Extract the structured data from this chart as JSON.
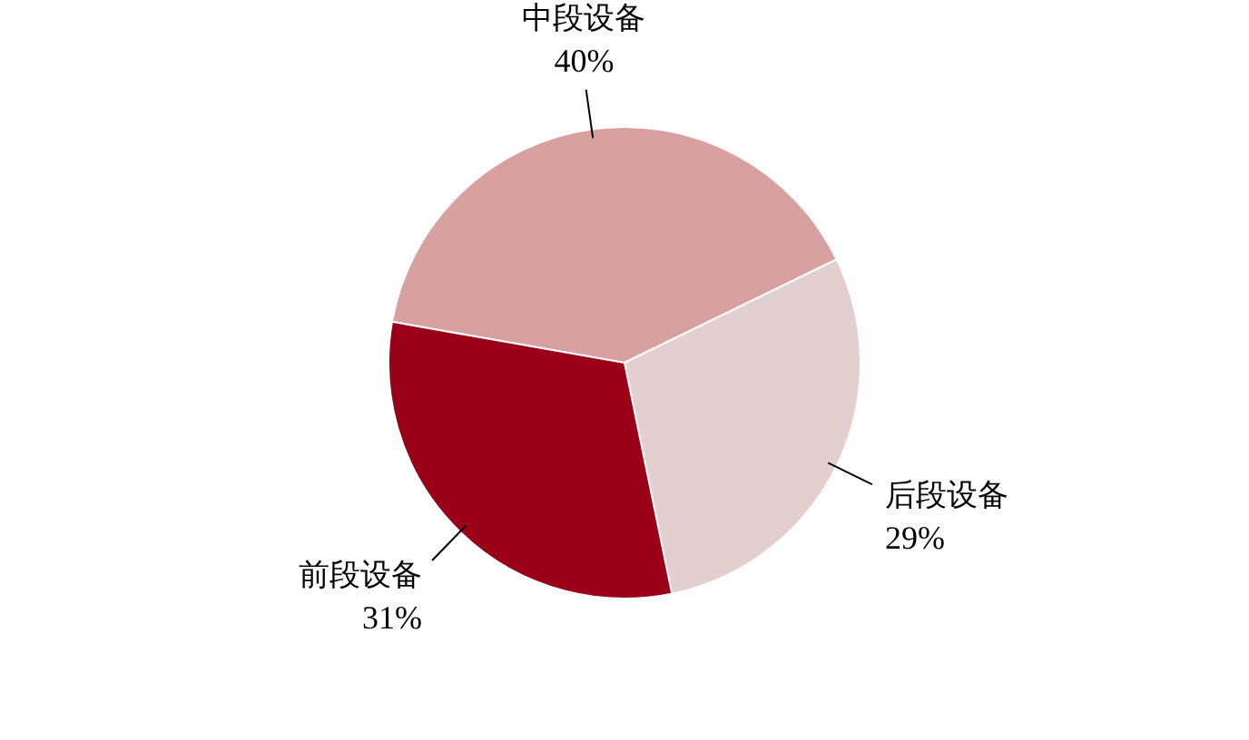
{
  "chart_data": {
    "type": "pie",
    "categories": [
      "中段设备",
      "后段设备",
      "前段设备"
    ],
    "values": [
      40,
      29,
      31
    ],
    "value_labels": [
      "40%",
      "29%",
      "31%"
    ],
    "colors": [
      "#d9a0a0",
      "#e3cfcf",
      "#9b0019"
    ]
  }
}
